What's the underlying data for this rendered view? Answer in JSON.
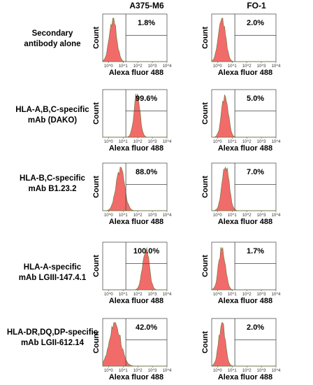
{
  "columns": [
    "A375-M6",
    "FO-1"
  ],
  "rows": [
    [
      "Secondary",
      "antibody alone"
    ],
    [
      "HLA-A,B,C-specific",
      "mAb (DAKO)"
    ],
    [
      "HLA-B,C-specific",
      "mAb B1.23.2"
    ],
    [
      "HLA-A-specific",
      "mAb LGIII-147.4.1"
    ],
    [
      "HLA-DR,DQ,DP-specific",
      "mAb LGII-612.14"
    ]
  ],
  "axis": {
    "xlabel": "Alexa fluor 488",
    "ylabel": "Count"
  },
  "colors": {
    "fill": "#f26b6b",
    "edge": "#6f7a3a",
    "gate": "#444444",
    "frame": "#555555"
  },
  "chart_data": [
    {
      "type": "area",
      "sample": "A375-M6",
      "condition": "Secondary antibody alone",
      "positive_percent": "1.8%",
      "peak_log10": 0.3,
      "width": 0.24,
      "xscale": "log",
      "x_ticks": [
        "10^0",
        "10^1",
        "10^2",
        "10^3",
        "10^4"
      ],
      "xlabel": "Alexa fluor 488",
      "ylabel": "Count"
    },
    {
      "type": "area",
      "sample": "FO-1",
      "condition": "Secondary antibody alone",
      "positive_percent": "2.0%",
      "peak_log10": 0.3,
      "width": 0.24,
      "xscale": "log",
      "x_ticks": [
        "10^0",
        "10^1",
        "10^2",
        "10^3",
        "10^4"
      ],
      "xlabel": "Alexa fluor 488",
      "ylabel": "Count"
    },
    {
      "type": "area",
      "sample": "A375-M6",
      "condition": "HLA-A,B,C-specific mAb (DAKO)",
      "positive_percent": "99.6%",
      "peak_log10": 1.95,
      "width": 0.2,
      "xscale": "log",
      "x_ticks": [
        "10^0",
        "10^1",
        "10^2",
        "10^3",
        "10^4"
      ],
      "xlabel": "Alexa fluor 488",
      "ylabel": "Count"
    },
    {
      "type": "area",
      "sample": "FO-1",
      "condition": "HLA-A,B,C-specific mAb (DAKO)",
      "positive_percent": "5.0%",
      "peak_log10": 0.5,
      "width": 0.22,
      "xscale": "log",
      "x_ticks": [
        "10^0",
        "10^1",
        "10^2",
        "10^3",
        "10^4"
      ],
      "xlabel": "Alexa fluor 488",
      "ylabel": "Count"
    },
    {
      "type": "area",
      "sample": "A375-M6",
      "condition": "HLA-B,C-specific mAb B1.23.2",
      "positive_percent": "88.0%",
      "peak_log10": 0.8,
      "width": 0.28,
      "xscale": "log",
      "x_ticks": [
        "10^0",
        "10^1",
        "10^2",
        "10^3",
        "10^4"
      ],
      "xlabel": "Alexa fluor 488",
      "ylabel": "Count"
    },
    {
      "type": "area",
      "sample": "FO-1",
      "condition": "HLA-B,C-specific mAb B1.23.2",
      "positive_percent": "7.0%",
      "peak_log10": 0.55,
      "width": 0.24,
      "xscale": "log",
      "x_ticks": [
        "10^0",
        "10^1",
        "10^2",
        "10^3",
        "10^4"
      ],
      "xlabel": "Alexa fluor 488",
      "ylabel": "Count"
    },
    {
      "type": "area",
      "sample": "A375-M6",
      "condition": "HLA-A-specific mAb LGIII-147.4.1",
      "positive_percent": "100.0%",
      "peak_log10": 2.55,
      "width": 0.22,
      "xscale": "log",
      "x_ticks": [
        "10^0",
        "10^1",
        "10^2",
        "10^3",
        "10^4"
      ],
      "xlabel": "Alexa fluor 488",
      "ylabel": "Count"
    },
    {
      "type": "area",
      "sample": "FO-1",
      "condition": "HLA-A-specific mAb LGIII-147.4.1",
      "positive_percent": "1.7%",
      "peak_log10": 0.3,
      "width": 0.22,
      "xscale": "log",
      "x_ticks": [
        "10^0",
        "10^1",
        "10^2",
        "10^3",
        "10^4"
      ],
      "xlabel": "Alexa fluor 488",
      "ylabel": "Count"
    },
    {
      "type": "area",
      "sample": "A375-M6",
      "condition": "HLA-DR,DQ,DP-specific mAb LGII-612.14",
      "positive_percent": "42.0%",
      "peak_log10": 0.45,
      "width": 0.38,
      "xscale": "log",
      "x_ticks": [
        "10^0",
        "10^1",
        "10^2",
        "10^3",
        "10^4"
      ],
      "xlabel": "Alexa fluor 488",
      "ylabel": "Count"
    },
    {
      "type": "area",
      "sample": "FO-1",
      "condition": "HLA-DR,DQ,DP-specific mAb LGII-612.14",
      "positive_percent": "2.0%",
      "peak_log10": 0.3,
      "width": 0.22,
      "xscale": "log",
      "x_ticks": [
        "10^0",
        "10^1",
        "10^2",
        "10^3",
        "10^4"
      ],
      "xlabel": "Alexa fluor 488",
      "ylabel": "Count"
    }
  ]
}
